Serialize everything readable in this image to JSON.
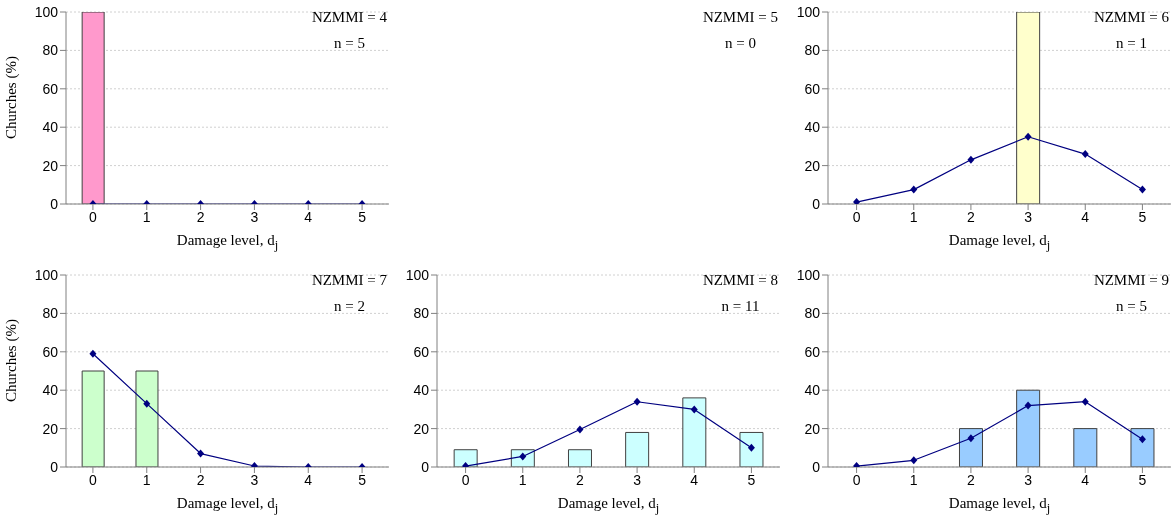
{
  "chart_data": [
    {
      "type": "bar",
      "categories": [
        "0",
        "1",
        "2",
        "3",
        "4",
        "5"
      ],
      "xlabel": "Damage level, d$_{j}$",
      "ylabel": "Churches (%)",
      "ylim": [
        0,
        100
      ],
      "yticks": [
        0,
        20,
        40,
        60,
        80,
        100
      ],
      "grid": "y",
      "annotations": [
        "NZMMI = 4",
        "n = 5"
      ],
      "series": [
        {
          "type": "bar",
          "color": "#ff99cc",
          "values": [
            100,
            0,
            0,
            0,
            0,
            0
          ]
        },
        {
          "type": "line",
          "color": "#000080",
          "marker": "diamond",
          "values": [
            0,
            0,
            0,
            0,
            0,
            0
          ]
        }
      ]
    },
    {
      "type": "other",
      "annotations": [
        "NZMMI = 5",
        "n = 0"
      ]
    },
    {
      "type": "bar",
      "categories": [
        "0",
        "1",
        "2",
        "3",
        "4",
        "5"
      ],
      "xlabel": "Damage level, d$_{j}$",
      "ylim": [
        0,
        100
      ],
      "yticks": [
        0,
        20,
        40,
        60,
        80,
        100
      ],
      "grid": "y",
      "annotations": [
        "NZMMI = 6",
        "n = 1"
      ],
      "series": [
        {
          "type": "bar",
          "color": "#ffffcc",
          "values": [
            0,
            0,
            0,
            100,
            0,
            0
          ]
        },
        {
          "type": "line",
          "color": "#000080",
          "marker": "diamond",
          "values": [
            1,
            7.5,
            23,
            35,
            26,
            7.5
          ]
        }
      ]
    },
    {
      "type": "bar",
      "categories": [
        "0",
        "1",
        "2",
        "3",
        "4",
        "5"
      ],
      "xlabel": "Damage level, d$_{j}$",
      "ylabel": "Churches (%)",
      "ylim": [
        0,
        100
      ],
      "yticks": [
        0,
        20,
        40,
        60,
        80,
        100
      ],
      "grid": "y",
      "annotations": [
        "NZMMI = 7",
        "n = 2"
      ],
      "series": [
        {
          "type": "bar",
          "color": "#ccffcc",
          "values": [
            50,
            50,
            0,
            0,
            0,
            0
          ]
        },
        {
          "type": "line",
          "color": "#000080",
          "marker": "diamond",
          "values": [
            59,
            33,
            7,
            0.5,
            0,
            0
          ]
        }
      ]
    },
    {
      "type": "bar",
      "categories": [
        "0",
        "1",
        "2",
        "3",
        "4",
        "5"
      ],
      "xlabel": "Damage level, d$_{j}$",
      "ylim": [
        0,
        100
      ],
      "yticks": [
        0,
        20,
        40,
        60,
        80,
        100
      ],
      "grid": "y",
      "annotations": [
        "NZMMI = 8",
        "n = 11"
      ],
      "series": [
        {
          "type": "bar",
          "color": "#ccffff",
          "values": [
            9,
            9,
            9,
            18,
            36,
            18
          ]
        },
        {
          "type": "line",
          "color": "#000080",
          "marker": "diamond",
          "values": [
            0.5,
            5.5,
            19.5,
            34,
            30,
            10
          ]
        }
      ]
    },
    {
      "type": "bar",
      "categories": [
        "0",
        "1",
        "2",
        "3",
        "4",
        "5"
      ],
      "xlabel": "Damage level, d$_{j}$",
      "ylim": [
        0,
        100
      ],
      "yticks": [
        0,
        20,
        40,
        60,
        80,
        100
      ],
      "grid": "y",
      "annotations": [
        "NZMMI = 9",
        "n = 5"
      ],
      "series": [
        {
          "type": "bar",
          "color": "#99ccff",
          "values": [
            0,
            0,
            20,
            40,
            20,
            20
          ]
        },
        {
          "type": "line",
          "color": "#000080",
          "marker": "diamond",
          "values": [
            0.5,
            3.5,
            15,
            32,
            34,
            14.5
          ]
        }
      ]
    }
  ]
}
